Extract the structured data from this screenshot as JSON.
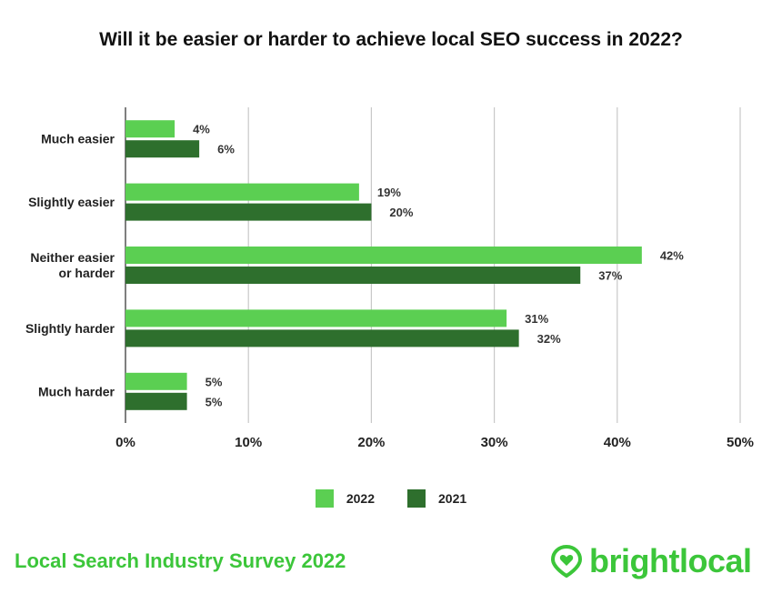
{
  "title": "Will it be easier or harder to achieve local SEO success in 2022?",
  "colors": {
    "series_2022": "#5bcf52",
    "series_2021": "#2e6f2d",
    "grid": "#c8c8c8",
    "brand": "#3cc63a"
  },
  "legend": [
    {
      "name": "2022",
      "color": "#5bcf52"
    },
    {
      "name": "2021",
      "color": "#2e6f2d"
    }
  ],
  "footer": {
    "survey": "Local Search Industry Survey 2022",
    "brand": "brightlocal",
    "brand_icon": "location-pin-heart-icon"
  },
  "chart_data": {
    "type": "bar",
    "orientation": "horizontal",
    "title": "Will it be easier or harder to achieve local SEO success in 2022?",
    "categories": [
      [
        "Much easier"
      ],
      [
        "Slightly easier"
      ],
      [
        "Neither easier",
        "or harder"
      ],
      [
        "Slightly harder"
      ],
      [
        "Much harder"
      ]
    ],
    "series": [
      {
        "name": "2022",
        "values": [
          4,
          19,
          42,
          31,
          5
        ],
        "labels": [
          "4%",
          "19%",
          "42%",
          "31%",
          "5%"
        ]
      },
      {
        "name": "2021",
        "values": [
          6,
          20,
          37,
          32,
          5
        ],
        "labels": [
          "6%",
          "20%",
          "37%",
          "32%",
          "5%"
        ]
      }
    ],
    "xlim": [
      0,
      50
    ],
    "xticks": [
      0,
      10,
      20,
      30,
      40,
      50
    ],
    "xtick_labels": [
      "0%",
      "10%",
      "20%",
      "30%",
      "40%",
      "50%"
    ],
    "grid": true,
    "legend_position": "bottom-center"
  }
}
